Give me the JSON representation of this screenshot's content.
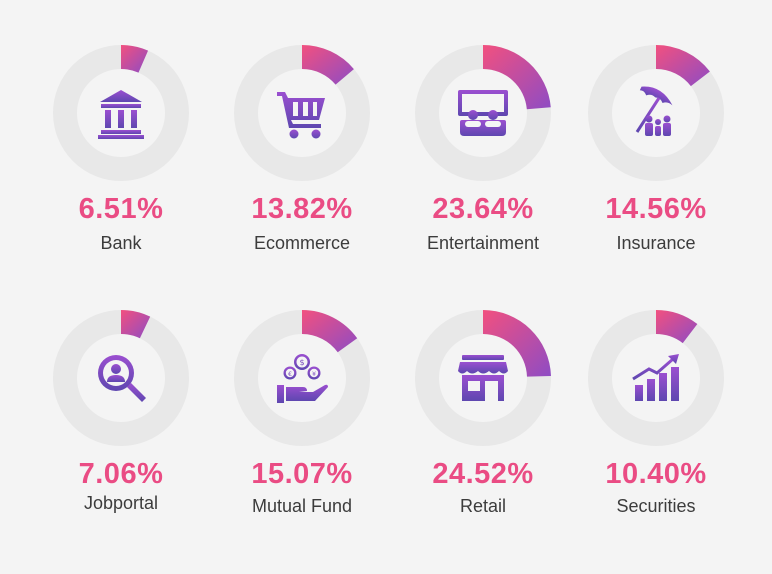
{
  "chart_data": {
    "type": "pie",
    "title": "",
    "categories": [
      "Bank",
      "Ecommerce",
      "Entertainment",
      "Insurance",
      "Jobportal",
      "Mutual Fund",
      "Retail",
      "Securities"
    ],
    "values": [
      6.51,
      13.82,
      23.64,
      14.56,
      7.06,
      15.07,
      24.52,
      10.4
    ],
    "unit": "%",
    "items": [
      {
        "label": "Bank",
        "value_text": "6.51%",
        "value": 6.51,
        "icon": "bank-icon"
      },
      {
        "label": "Ecommerce",
        "value_text": "13.82%",
        "value": 13.82,
        "icon": "shopping-cart-icon"
      },
      {
        "label": "Entertainment",
        "value_text": "23.64%",
        "value": 23.64,
        "icon": "cinema-screen-icon"
      },
      {
        "label": "Insurance",
        "value_text": "14.56%",
        "value": 14.56,
        "icon": "umbrella-family-icon"
      },
      {
        "label": "Jobportal",
        "value_text": "7.06%",
        "value": 7.06,
        "icon": "magnifier-person-icon"
      },
      {
        "label": "Mutual Fund",
        "value_text": "15.07%",
        "value": 15.07,
        "icon": "coins-hand-icon"
      },
      {
        "label": "Retail",
        "value_text": "24.52%",
        "value": 24.52,
        "icon": "storefront-icon"
      },
      {
        "label": "Securities",
        "value_text": "10.40%",
        "value": 10.4,
        "icon": "growth-bars-icon"
      }
    ]
  },
  "colors": {
    "track": "#e8e8e8",
    "gradient_start": "#f2507f",
    "gradient_end": "#8e4cc4",
    "value_text": "#ea4c84",
    "label_text": "#3c3c3c",
    "icon_fill": "#7a4bbf"
  }
}
